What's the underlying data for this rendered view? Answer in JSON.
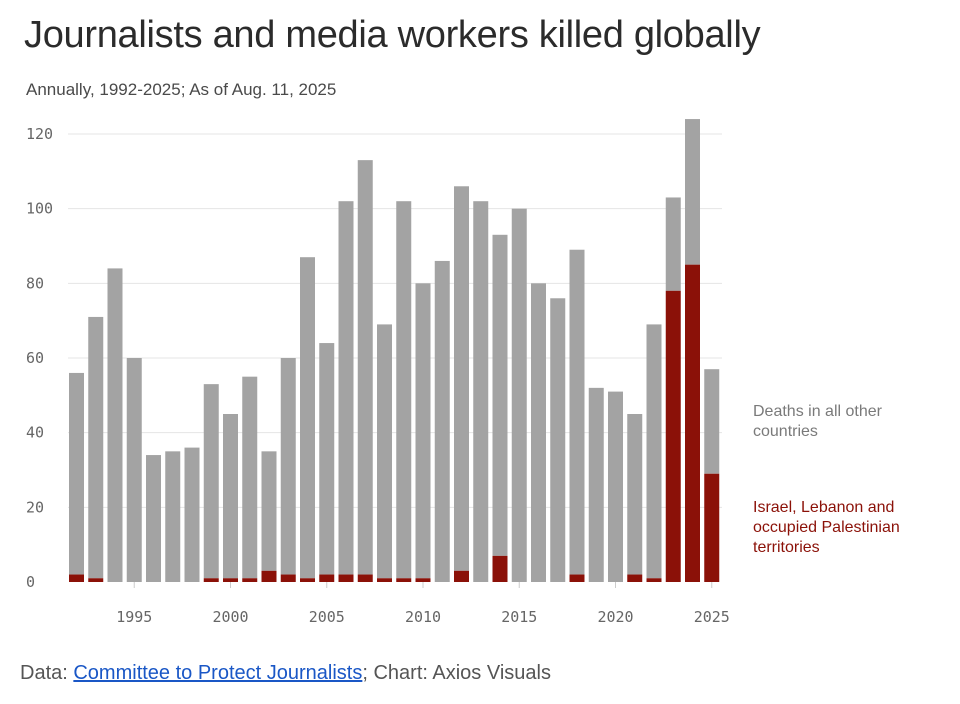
{
  "title": "Journalists and media workers killed globally",
  "subtitle": "Annually, 1992-2025; As of Aug. 11, 2025",
  "footer": {
    "prefix": "Data: ",
    "source_link": "Committee to Protect Journalists",
    "suffix": "; Chart: Axios Visuals"
  },
  "colors": {
    "other": "#a3a3a3",
    "israel": "#8b1108",
    "grid": "#e4e4e4"
  },
  "chart_data": {
    "type": "bar",
    "stacked": true,
    "title": "Journalists and media workers killed globally",
    "xlabel": "",
    "ylabel": "",
    "ylim": [
      0,
      120
    ],
    "yticks": [
      0,
      20,
      40,
      60,
      80,
      100,
      120
    ],
    "xticks": [
      1995,
      2000,
      2005,
      2010,
      2015,
      2020,
      2025
    ],
    "categories": [
      1992,
      1993,
      1994,
      1995,
      1996,
      1997,
      1998,
      1999,
      2000,
      2001,
      2002,
      2003,
      2004,
      2005,
      2006,
      2007,
      2008,
      2009,
      2010,
      2011,
      2012,
      2013,
      2014,
      2015,
      2016,
      2017,
      2018,
      2019,
      2020,
      2021,
      2022,
      2023,
      2024,
      2025
    ],
    "totals": [
      56,
      71,
      84,
      60,
      34,
      35,
      36,
      53,
      45,
      55,
      35,
      60,
      87,
      64,
      102,
      113,
      69,
      102,
      80,
      86,
      106,
      102,
      93,
      100,
      80,
      76,
      89,
      52,
      51,
      45,
      69,
      103,
      124,
      57
    ],
    "series": [
      {
        "name": "Israel, Lebanon and occupied Palestinian territories",
        "values": [
          2,
          1,
          0,
          0,
          0,
          0,
          0,
          1,
          1,
          1,
          3,
          2,
          1,
          2,
          2,
          2,
          1,
          1,
          1,
          0,
          3,
          0,
          7,
          0,
          0,
          0,
          2,
          0,
          0,
          2,
          1,
          78,
          85,
          29
        ]
      },
      {
        "name": "Deaths in all other countries",
        "values": [
          54,
          70,
          84,
          60,
          34,
          35,
          36,
          52,
          44,
          54,
          32,
          58,
          86,
          62,
          100,
          111,
          68,
          101,
          79,
          86,
          103,
          102,
          86,
          100,
          80,
          76,
          87,
          52,
          51,
          43,
          68,
          25,
          39,
          28
        ]
      }
    ],
    "legend": {
      "other": "Deaths in all other countries",
      "israel": "Israel, Lebanon and occupied Palestinian territories"
    }
  }
}
